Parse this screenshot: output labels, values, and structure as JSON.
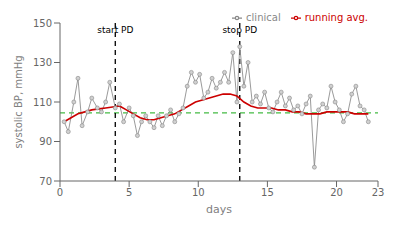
{
  "chart_data": {
    "type": "line",
    "xlabel": "days",
    "ylabel": "systolic BP, mmHg",
    "xlim": [
      0,
      23
    ],
    "ylim": [
      70,
      150
    ],
    "xticks": [
      0,
      5,
      10,
      15,
      20,
      23
    ],
    "yticks": [
      70,
      90,
      110,
      130,
      150
    ],
    "grid": false,
    "legend": "upper right",
    "series": [
      {
        "name": "clinical",
        "color": "#888888",
        "marker": "circle",
        "line_style": "solid",
        "x": [
          0.3,
          0.6,
          1.0,
          1.3,
          1.6,
          2.0,
          2.3,
          2.7,
          3.0,
          3.3,
          3.6,
          4.0,
          4.3,
          4.6,
          5.0,
          5.3,
          5.6,
          5.9,
          6.2,
          6.5,
          6.8,
          7.1,
          7.4,
          7.7,
          8.0,
          8.3,
          8.6,
          8.9,
          9.2,
          9.5,
          9.8,
          10.1,
          10.4,
          10.7,
          11.0,
          11.3,
          11.6,
          11.9,
          12.2,
          12.5,
          12.8,
          13.0,
          13.3,
          13.6,
          13.9,
          14.2,
          14.5,
          14.8,
          15.1,
          15.4,
          15.7,
          16.0,
          16.3,
          16.6,
          16.9,
          17.2,
          17.5,
          17.8,
          18.1,
          18.4,
          18.7,
          19.0,
          19.3,
          19.6,
          19.9,
          20.2,
          20.5,
          20.8,
          21.1,
          21.4,
          21.7,
          22.0,
          22.3
        ],
        "values": [
          100,
          95,
          110,
          122,
          98,
          105,
          112,
          107,
          105,
          110,
          120,
          107,
          109,
          100,
          107,
          103,
          93,
          100,
          103,
          100,
          97,
          103,
          98,
          103,
          106,
          100,
          104,
          107,
          118,
          125,
          120,
          124,
          112,
          115,
          122,
          117,
          120,
          125,
          120,
          135,
          110,
          138,
          118,
          130,
          110,
          113,
          109,
          115,
          107,
          105,
          110,
          115,
          108,
          112,
          106,
          108,
          104,
          109,
          113,
          77,
          106,
          109,
          107,
          118,
          110,
          106,
          100,
          104,
          114,
          118,
          108,
          106,
          100
        ]
      },
      {
        "name": "running avg.",
        "color": "#cc0000",
        "line_style": "solid",
        "x": [
          0.3,
          0.8,
          1.3,
          1.8,
          2.3,
          2.8,
          3.3,
          3.8,
          4.3,
          4.8,
          5.3,
          5.8,
          6.3,
          6.8,
          7.3,
          7.8,
          8.3,
          8.8,
          9.3,
          9.8,
          10.3,
          10.8,
          11.3,
          11.8,
          12.3,
          12.8,
          13.3,
          13.8,
          14.3,
          14.8,
          15.3,
          15.8,
          16.3,
          16.8,
          17.3,
          17.8,
          18.3,
          18.8,
          19.3,
          19.8,
          20.3,
          20.8,
          21.3,
          21.8,
          22.3
        ],
        "values": [
          100,
          102,
          104,
          105,
          106,
          106.5,
          107,
          107.5,
          108,
          106,
          104,
          102,
          101,
          101,
          102,
          103,
          104,
          106,
          108,
          110,
          111,
          112,
          113,
          114,
          114,
          113,
          110,
          108,
          107,
          107,
          107,
          106,
          106,
          105,
          105,
          104,
          104,
          104,
          105,
          105,
          105,
          105,
          104,
          104,
          104
        ]
      }
    ],
    "hlines": [
      {
        "y": 104.5,
        "color": "#44bb44",
        "line_style": "dashed"
      }
    ],
    "vlines": [
      {
        "x": 4.0,
        "label": "start PD",
        "color": "#111111",
        "line_style": "dashed"
      },
      {
        "x": 13.0,
        "label": "stop PD",
        "color": "#111111",
        "line_style": "dashed"
      }
    ]
  }
}
